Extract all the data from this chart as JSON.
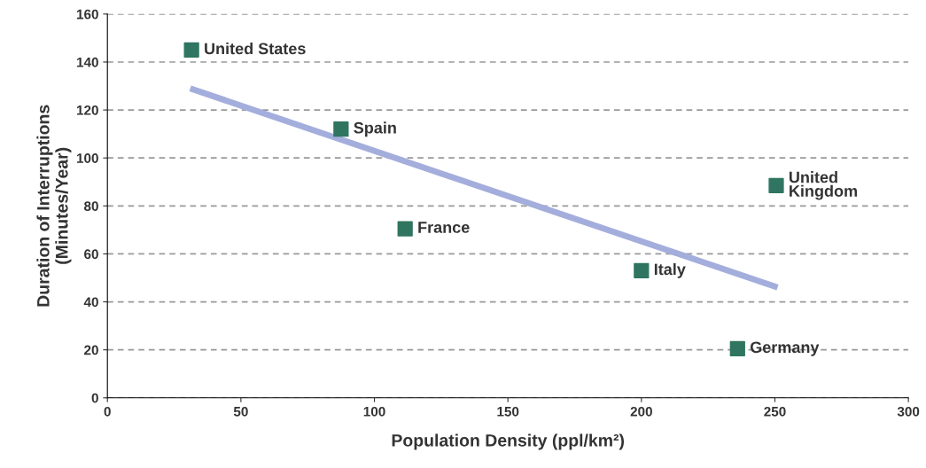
{
  "chart_data": {
    "type": "scatter",
    "xlabel": "Population Density (ppl/km²)",
    "ylabel": "Duration of Interruptions\n(Minutes/Year)",
    "xlim": [
      0,
      300
    ],
    "xticks": [
      0,
      50,
      100,
      150,
      200,
      250,
      300
    ],
    "ylim": [
      0,
      160
    ],
    "yticks": [
      0,
      20,
      40,
      60,
      80,
      100,
      120,
      140,
      160
    ],
    "grid": "y",
    "marker": "square",
    "series": [
      {
        "type": "line",
        "marker": "none",
        "color": "#a4aedc",
        "x": [
          31,
          251
        ],
        "values": [
          129,
          46
        ]
      },
      {
        "color": "#2f7560",
        "x": [
          31.5,
          87.5,
          111.5,
          200,
          250.5,
          236
        ],
        "values": [
          145,
          112,
          70.5,
          53,
          88.5,
          20.5
        ]
      }
    ],
    "annotations": [
      {
        "text": "United States",
        "x": 31.5,
        "y": 145
      },
      {
        "text": "Spain",
        "x": 87.5,
        "y": 112
      },
      {
        "text": "France",
        "x": 111.5,
        "y": 70.5
      },
      {
        "text": "Italy",
        "x": 200,
        "y": 53
      },
      {
        "text": "United\nKingdom",
        "x": 250.5,
        "y": 88.5
      },
      {
        "text": "Germany",
        "x": 236,
        "y": 20.5
      }
    ]
  }
}
